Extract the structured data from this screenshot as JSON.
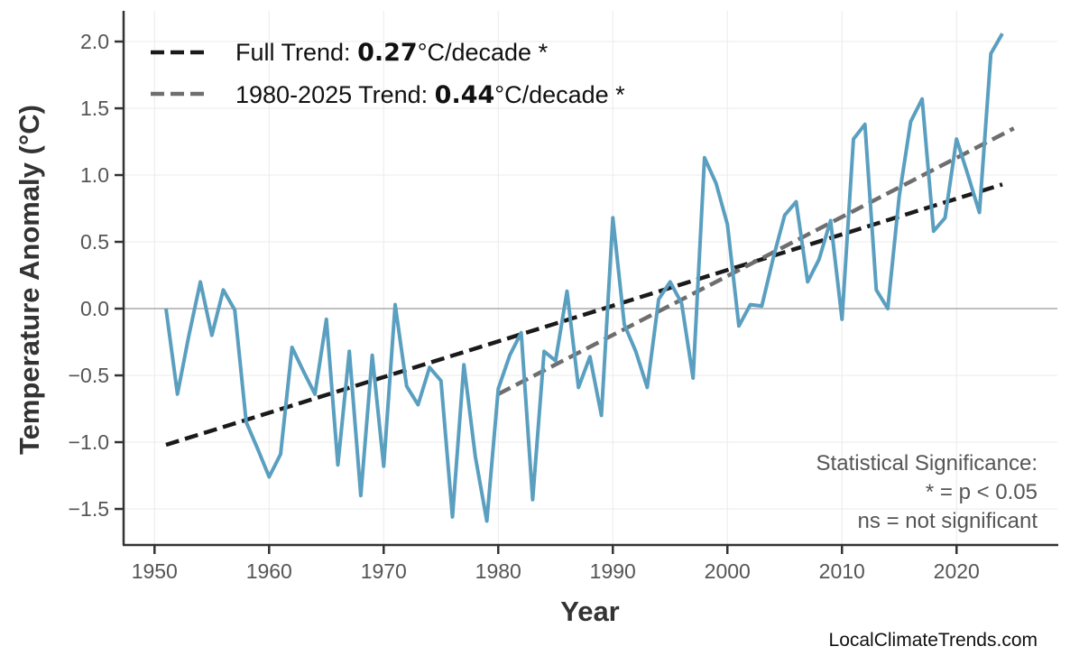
{
  "chart_data": {
    "type": "line",
    "title": "",
    "xlabel": "Year",
    "ylabel": "Temperature Anomaly (°C)",
    "xlim": [
      1947.3,
      2028.8
    ],
    "ylim": [
      -1.77,
      2.23
    ],
    "grid": true,
    "x_ticks": [
      1950,
      1960,
      1970,
      1980,
      1990,
      2000,
      2010,
      2020
    ],
    "y_ticks": [
      -1.5,
      -1.0,
      -0.5,
      0.0,
      0.5,
      1.0,
      1.5,
      2.0
    ],
    "y_tick_labels": [
      "−1.5",
      "−1.0",
      "−0.5",
      "0.0",
      "0.5",
      "1.0",
      "1.5",
      "2.0"
    ],
    "zero_line": true,
    "series": [
      {
        "color": "#5a9fc0",
        "x": [
          1951,
          1952,
          1953,
          1954,
          1955,
          1956,
          1957,
          1958,
          1959,
          1960,
          1961,
          1962,
          1963,
          1964,
          1965,
          1966,
          1967,
          1968,
          1969,
          1970,
          1971,
          1972,
          1973,
          1974,
          1975,
          1976,
          1977,
          1978,
          1979,
          1980,
          1981,
          1982,
          1983,
          1984,
          1985,
          1986,
          1987,
          1988,
          1989,
          1990,
          1991,
          1992,
          1993,
          1994,
          1995,
          1996,
          1997,
          1998,
          1999,
          2000,
          2001,
          2002,
          2003,
          2004,
          2005,
          2006,
          2007,
          2008,
          2009,
          2010,
          2011,
          2012,
          2013,
          2014,
          2015,
          2016,
          2017,
          2018,
          2019,
          2020,
          2021,
          2022,
          2023,
          2024
        ],
        "values": [
          0.0,
          -0.64,
          -0.2,
          0.2,
          -0.2,
          0.14,
          -0.01,
          -0.85,
          -1.05,
          -1.26,
          -1.09,
          -0.29,
          -0.47,
          -0.64,
          -0.08,
          -1.17,
          -0.32,
          -1.4,
          -0.35,
          -1.18,
          0.03,
          -0.58,
          -0.72,
          -0.44,
          -0.54,
          -1.56,
          -0.42,
          -1.11,
          -1.59,
          -0.6,
          -0.35,
          -0.18,
          -1.43,
          -0.32,
          -0.39,
          0.13,
          -0.59,
          -0.36,
          -0.8,
          0.68,
          -0.12,
          -0.32,
          -0.59,
          0.07,
          0.2,
          0.04,
          -0.52,
          1.13,
          0.94,
          0.63,
          -0.13,
          0.03,
          0.02,
          0.38,
          0.7,
          0.8,
          0.2,
          0.37,
          0.66,
          -0.08,
          1.27,
          1.38,
          0.14,
          0.0,
          0.84,
          1.4,
          1.57,
          0.58,
          0.68,
          1.27,
          1.0,
          0.72,
          1.91,
          2.06
        ]
      }
    ],
    "trends": [
      {
        "label_prefix": "Full Trend: ",
        "value": "0.27",
        "label_suffix": "°C/decade *",
        "color": "#1a1a1a",
        "x": [
          1951,
          2024
        ],
        "y": [
          -1.02,
          0.93
        ]
      },
      {
        "label_prefix": "1980-2025 Trend: ",
        "value": "0.44",
        "label_suffix": "°C/decade *",
        "color": "#6e6e6e",
        "x": [
          1980,
          2025
        ],
        "y": [
          -0.64,
          1.35
        ]
      }
    ],
    "legend_position": "top-left",
    "annotation": [
      "Statistical Significance:",
      "* = p < 0.05",
      "ns = not significant"
    ],
    "watermark": "LocalClimateTrends.com"
  }
}
